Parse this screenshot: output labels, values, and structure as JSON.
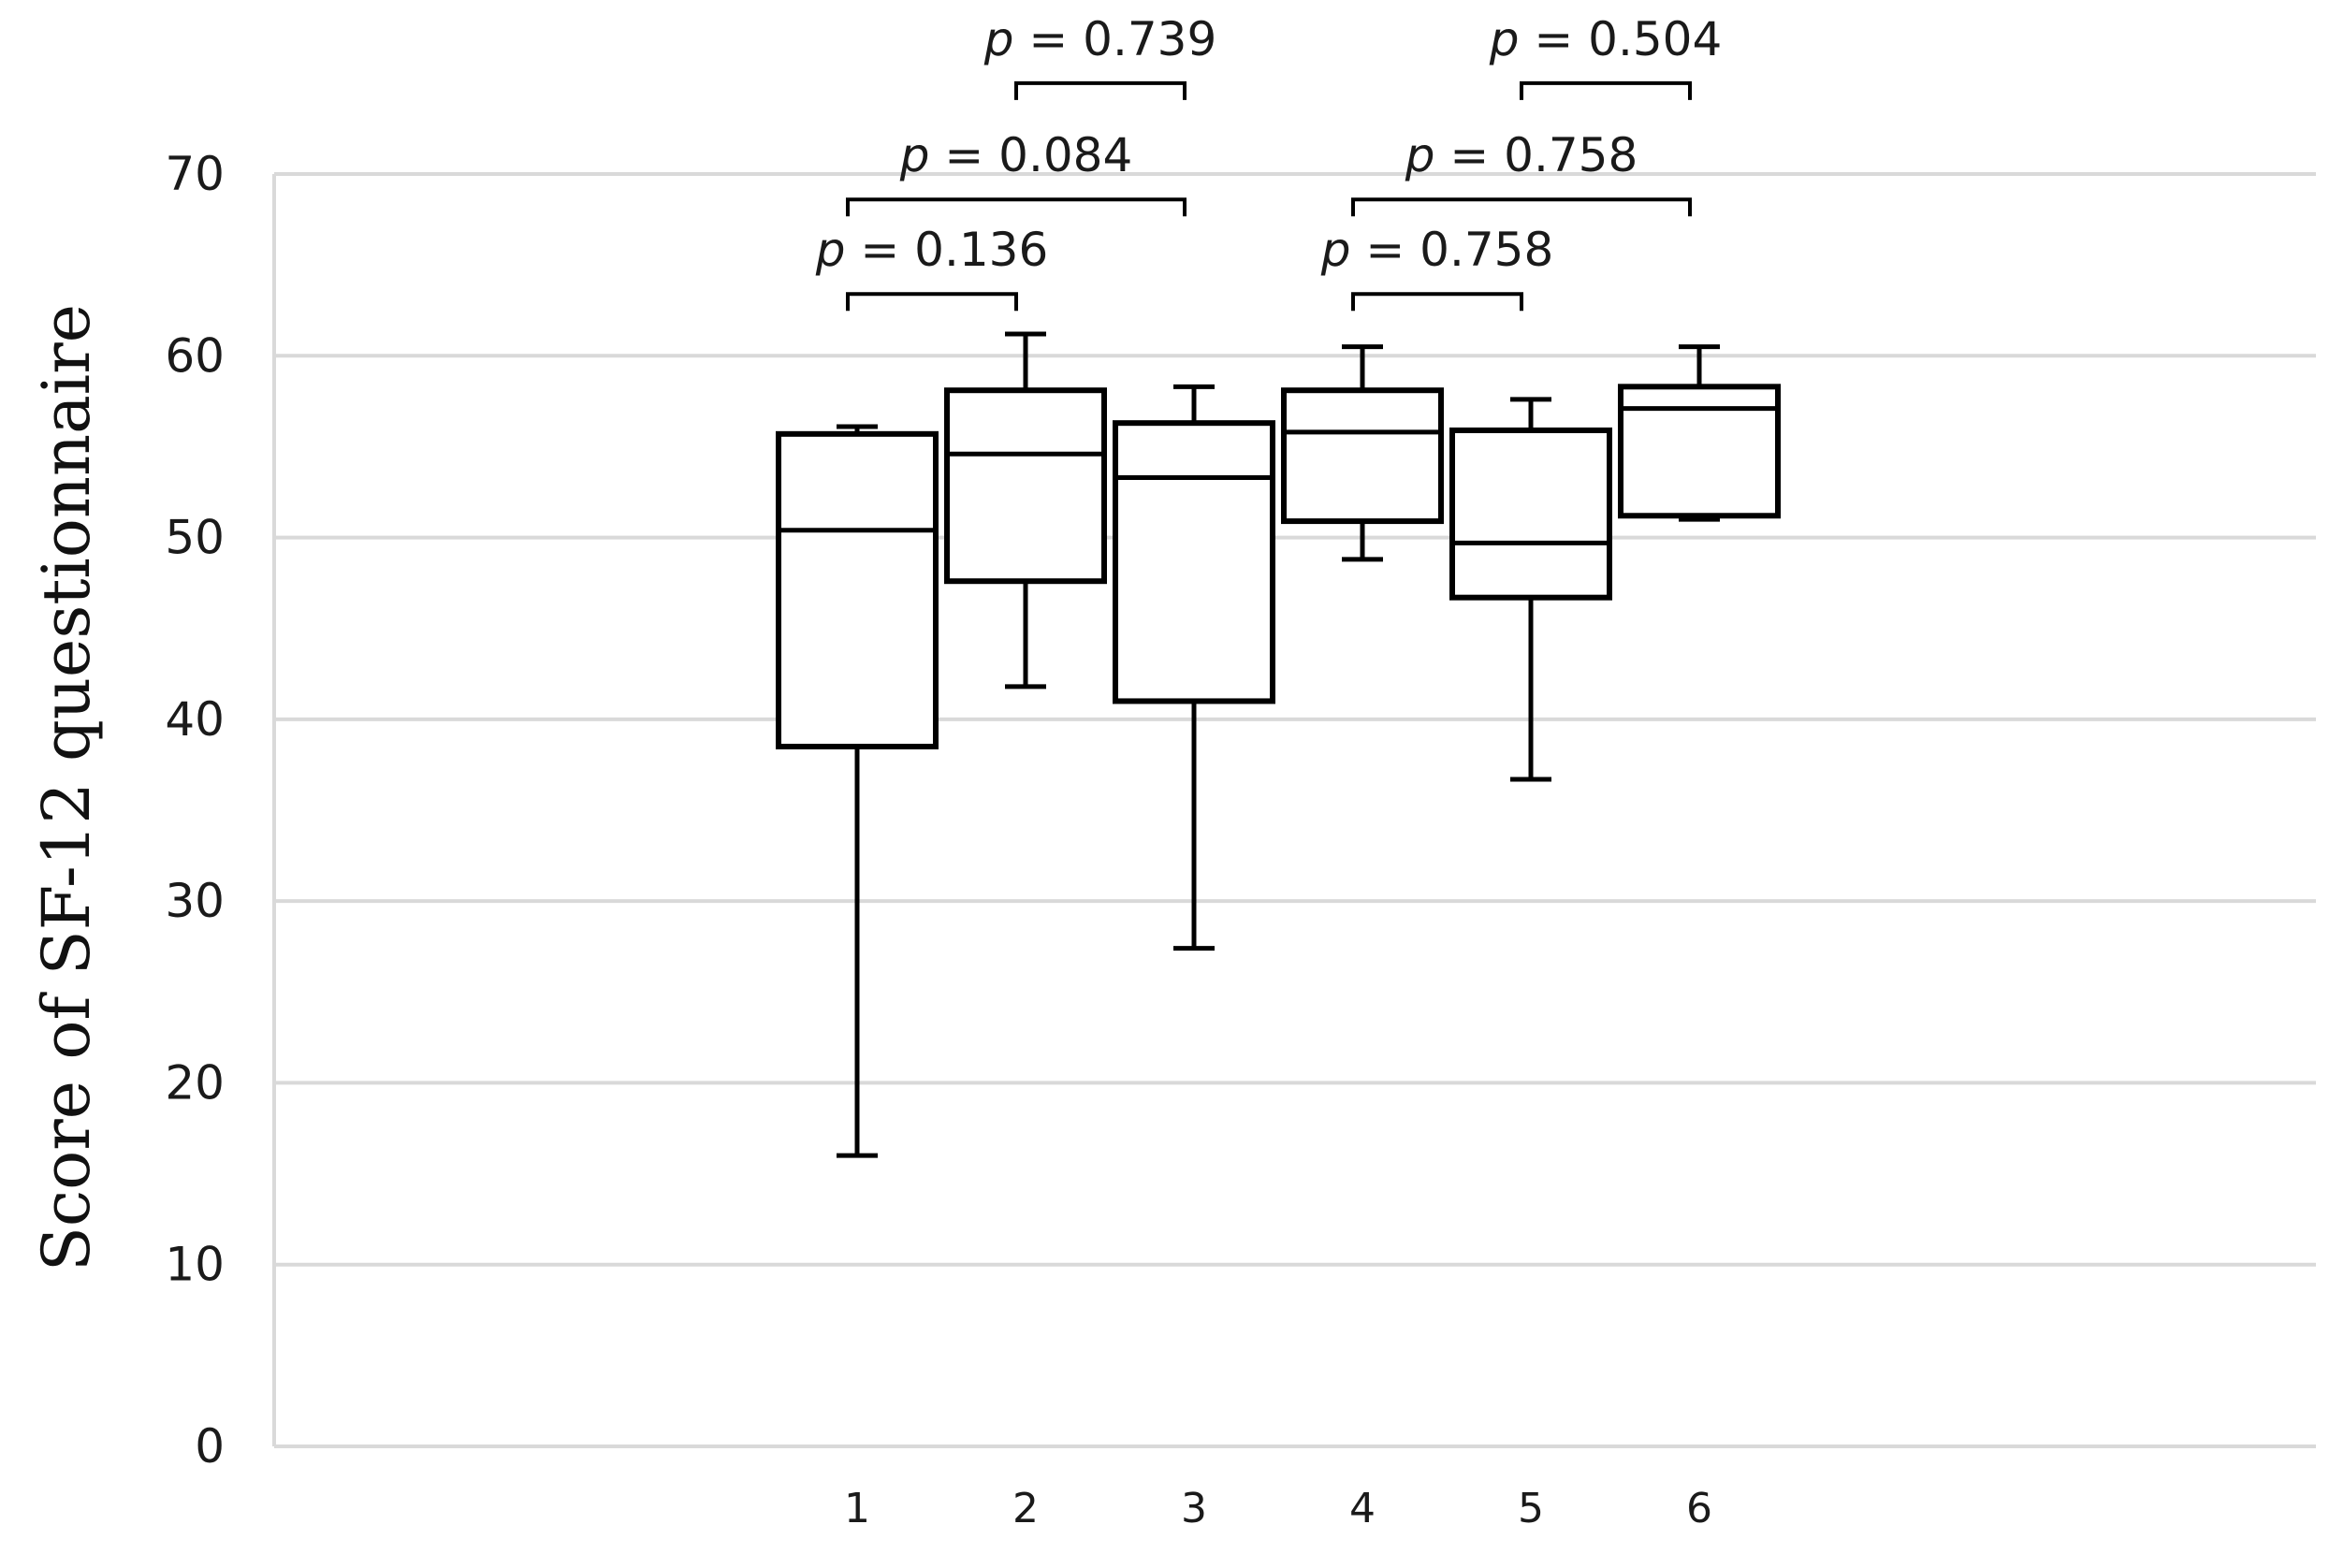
{
  "chart_data": {
    "type": "box",
    "title": "",
    "xlabel": "",
    "ylabel": "Score of SF-12 questionnaire",
    "ylim": [
      0,
      70
    ],
    "yticks": [
      0,
      10,
      20,
      30,
      40,
      50,
      60,
      70
    ],
    "grid": true,
    "categories": [
      "1",
      "2",
      "3",
      "4",
      "5",
      "6"
    ],
    "boxes": [
      {
        "category": "1",
        "min": 16.0,
        "q1": 38.5,
        "median": 50.4,
        "q3": 55.7,
        "max": 56.1
      },
      {
        "category": "2",
        "min": 41.8,
        "q1": 47.6,
        "median": 54.6,
        "q3": 58.1,
        "max": 61.2
      },
      {
        "category": "3",
        "min": 27.4,
        "q1": 41.0,
        "median": 53.3,
        "q3": 56.3,
        "max": 58.3
      },
      {
        "category": "4",
        "min": 48.8,
        "q1": 50.9,
        "median": 55.8,
        "q3": 58.1,
        "max": 60.5
      },
      {
        "category": "5",
        "min": 36.7,
        "q1": 46.7,
        "median": 49.7,
        "q3": 55.9,
        "max": 57.6
      },
      {
        "category": "6",
        "min": 51.0,
        "q1": 51.2,
        "median": 57.1,
        "q3": 58.3,
        "max": 60.5
      }
    ],
    "comparisons": [
      {
        "from": "1",
        "to": "2",
        "level": 63.4,
        "label_p": "p",
        "label_rest": " = 0.136"
      },
      {
        "from": "1",
        "to": "3",
        "level": 68.6,
        "label_p": "p",
        "label_rest": " = 0.084"
      },
      {
        "from": "2",
        "to": "3",
        "level": 75.0,
        "label_p": "p",
        "label_rest": " = 0.739"
      },
      {
        "from": "4",
        "to": "5",
        "level": 63.4,
        "label_p": "p",
        "label_rest": " = 0.758"
      },
      {
        "from": "4",
        "to": "6",
        "level": 68.6,
        "label_p": "p",
        "label_rest": " = 0.758"
      },
      {
        "from": "5",
        "to": "6",
        "level": 75.0,
        "label_p": "p",
        "label_rest": " = 0.504"
      }
    ]
  },
  "colors": {
    "grid": "#d9d9d9",
    "box_stroke": "#000000",
    "box_fill": "#ffffff",
    "text": "#1a1a1a"
  }
}
